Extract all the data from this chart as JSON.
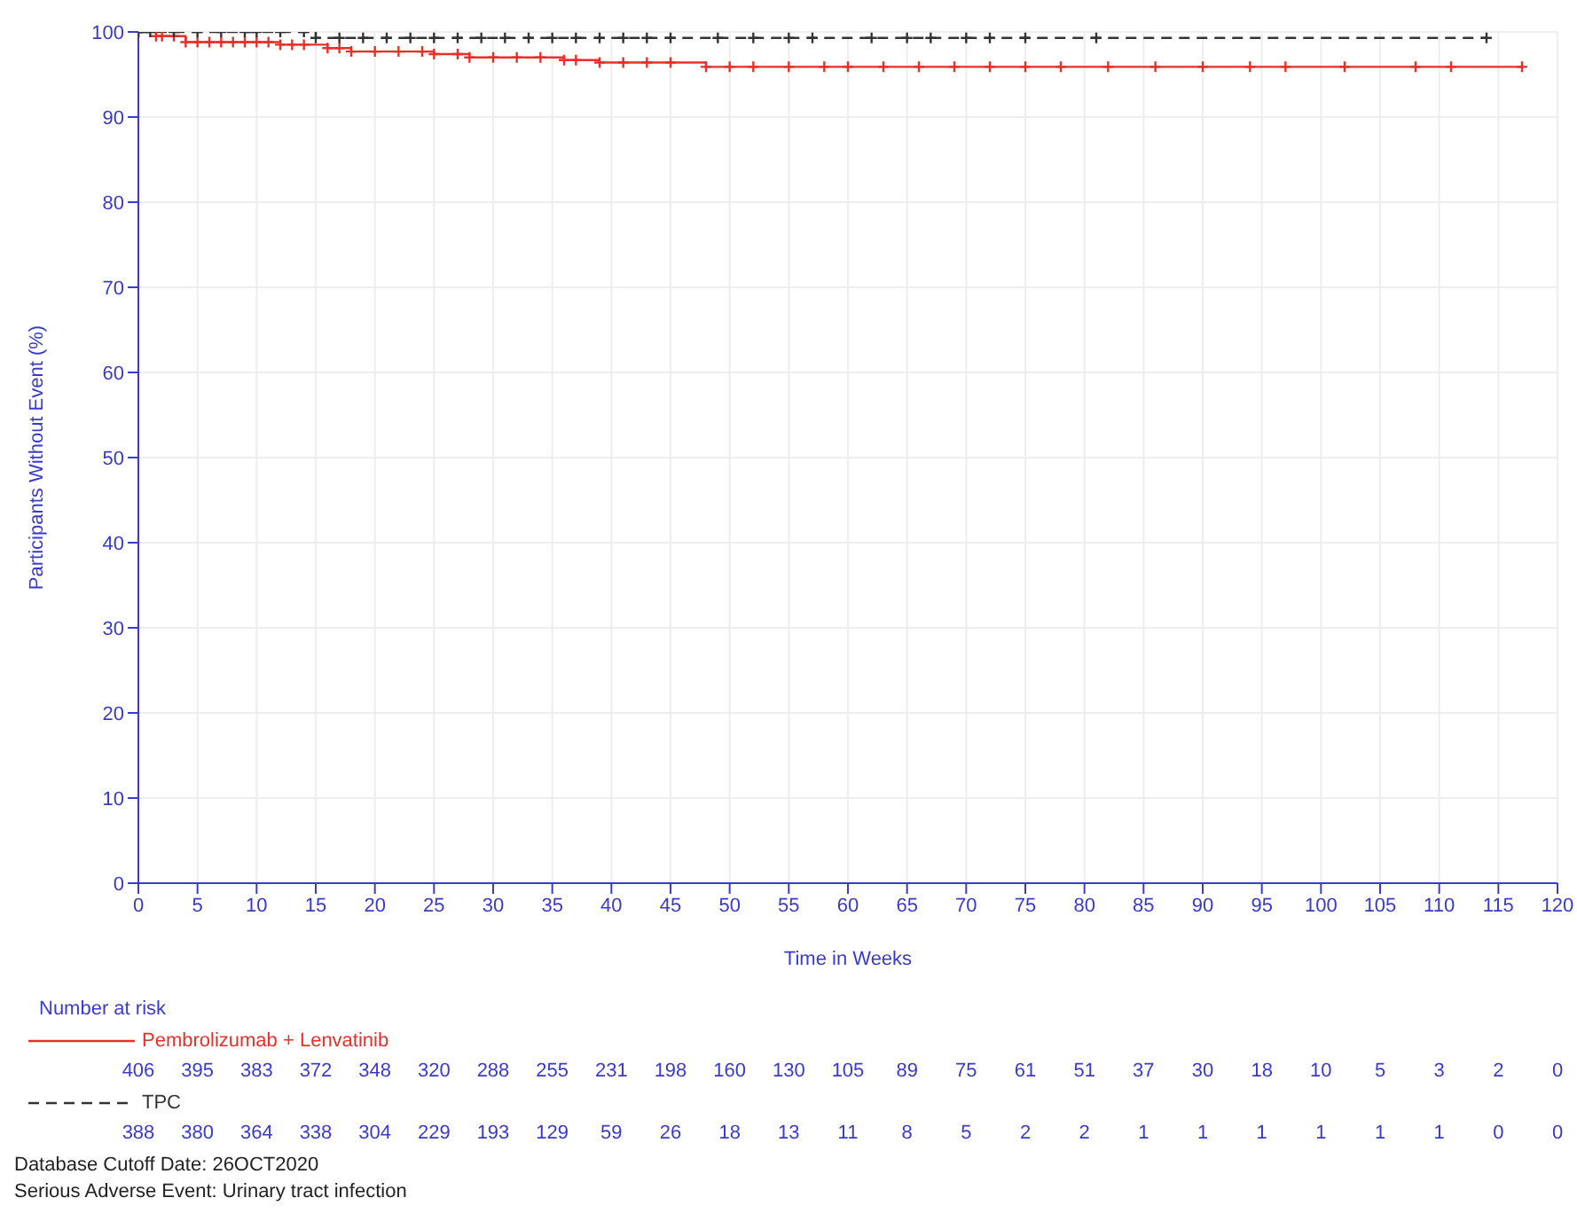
{
  "chart_data": {
    "type": "step",
    "xlabel": "Time in Weeks",
    "ylabel": "Participants Without Event (%)",
    "xlim": [
      0,
      120
    ],
    "xticks": [
      0,
      5,
      10,
      15,
      20,
      25,
      30,
      35,
      40,
      45,
      50,
      55,
      60,
      65,
      70,
      75,
      80,
      85,
      90,
      95,
      100,
      105,
      110,
      115,
      120
    ],
    "ylim": [
      0,
      100
    ],
    "yticks": [
      0,
      10,
      20,
      30,
      40,
      50,
      60,
      70,
      80,
      90,
      100
    ],
    "grid": true,
    "legend": "bottom",
    "marker": "cross",
    "series": [
      {
        "name": "Pembrolizumab + Lenvatinib",
        "color": "#e8302a",
        "line_style": "solid",
        "x": [
          0,
          1.5,
          2,
          3,
          4,
          5,
          6,
          7,
          8,
          9,
          10,
          11,
          12,
          13,
          14,
          16,
          17,
          18,
          20,
          22,
          24,
          25,
          27,
          28,
          30,
          32,
          34,
          36,
          37,
          39,
          41,
          43,
          45,
          48,
          50,
          52,
          55,
          58,
          60,
          63,
          66,
          69,
          72,
          75,
          78,
          82,
          86,
          90,
          94,
          97,
          102,
          108,
          111,
          117
        ],
        "values": [
          100,
          99.5,
          99.5,
          99.5,
          98.8,
          98.8,
          98.8,
          98.8,
          98.8,
          98.8,
          98.8,
          98.8,
          98.5,
          98.5,
          98.5,
          98.1,
          98.1,
          97.7,
          97.7,
          97.7,
          97.7,
          97.4,
          97.4,
          97,
          97,
          97,
          97,
          96.7,
          96.7,
          96.4,
          96.4,
          96.4,
          96.4,
          95.9,
          95.9,
          95.9,
          95.9,
          95.9,
          95.9,
          95.9,
          95.9,
          95.9,
          95.9,
          95.9,
          95.9,
          95.9,
          95.9,
          95.9,
          95.9,
          95.9,
          95.9,
          95.9,
          95.9,
          95.9
        ]
      },
      {
        "name": "TPC",
        "color": "#333333",
        "line_style": "dashed",
        "x": [
          0,
          1,
          3,
          5,
          7,
          9,
          10,
          12,
          14,
          15,
          17,
          19,
          21,
          23,
          25,
          27,
          29,
          31,
          33,
          35,
          37,
          39,
          41,
          43,
          45,
          49,
          52,
          55,
          57,
          62,
          65,
          67,
          70,
          72,
          75,
          81,
          114
        ],
        "values": [
          100,
          100,
          100,
          100,
          100,
          100,
          100,
          100,
          100,
          99.3,
          99.3,
          99.3,
          99.3,
          99.3,
          99.3,
          99.3,
          99.3,
          99.3,
          99.3,
          99.3,
          99.3,
          99.3,
          99.3,
          99.3,
          99.3,
          99.3,
          99.3,
          99.3,
          99.3,
          99.3,
          99.3,
          99.3,
          99.3,
          99.3,
          99.3,
          99.3,
          99.3
        ]
      }
    ],
    "annotations": [
      "Number at risk",
      "406 395 383 372 348 320 288 255 231 198 160 130 105 89 75 61 51 37 30 18 10 5 3 2 0",
      "388 380 364 338 304 229 193 129 59 26 18 13 11 8 5 2 2 1 1 1 1 1 1 0 0",
      "Database Cutoff Date: 26OCT2020",
      "Serious Adverse Event: Urinary tract infection"
    ]
  }
}
